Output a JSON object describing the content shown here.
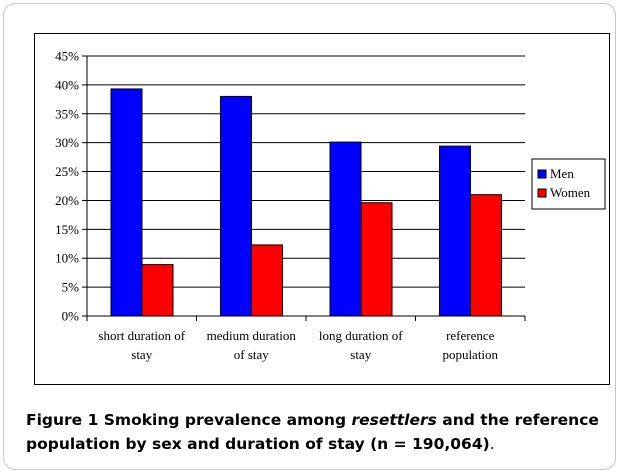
{
  "chart_data": {
    "type": "bar",
    "categories": [
      [
        "short duration of",
        "stay"
      ],
      [
        "medium duration",
        "of stay"
      ],
      [
        "long duration of",
        "stay"
      ],
      [
        "reference",
        "population"
      ]
    ],
    "series": [
      {
        "name": "Men",
        "color": "#0000ff",
        "values": [
          39.3,
          38.0,
          30.1,
          29.4
        ]
      },
      {
        "name": "Women",
        "color": "#ff0000",
        "values": [
          8.9,
          12.3,
          19.6,
          21.0
        ]
      }
    ],
    "yticks": [
      "0%",
      "5%",
      "10%",
      "15%",
      "20%",
      "25%",
      "30%",
      "35%",
      "40%",
      "45%"
    ],
    "ylim": [
      0,
      45
    ],
    "ystep": 5,
    "grid": true,
    "legend_position": "right",
    "xlabel": "",
    "ylabel": ""
  },
  "caption": {
    "figure_label": "Figure 1",
    "text_before": " Smoking prevalence among ",
    "italic": "resettlers",
    "text_after": " and the reference population by sex and duration of stay (n = 190,064)",
    "end": "."
  }
}
